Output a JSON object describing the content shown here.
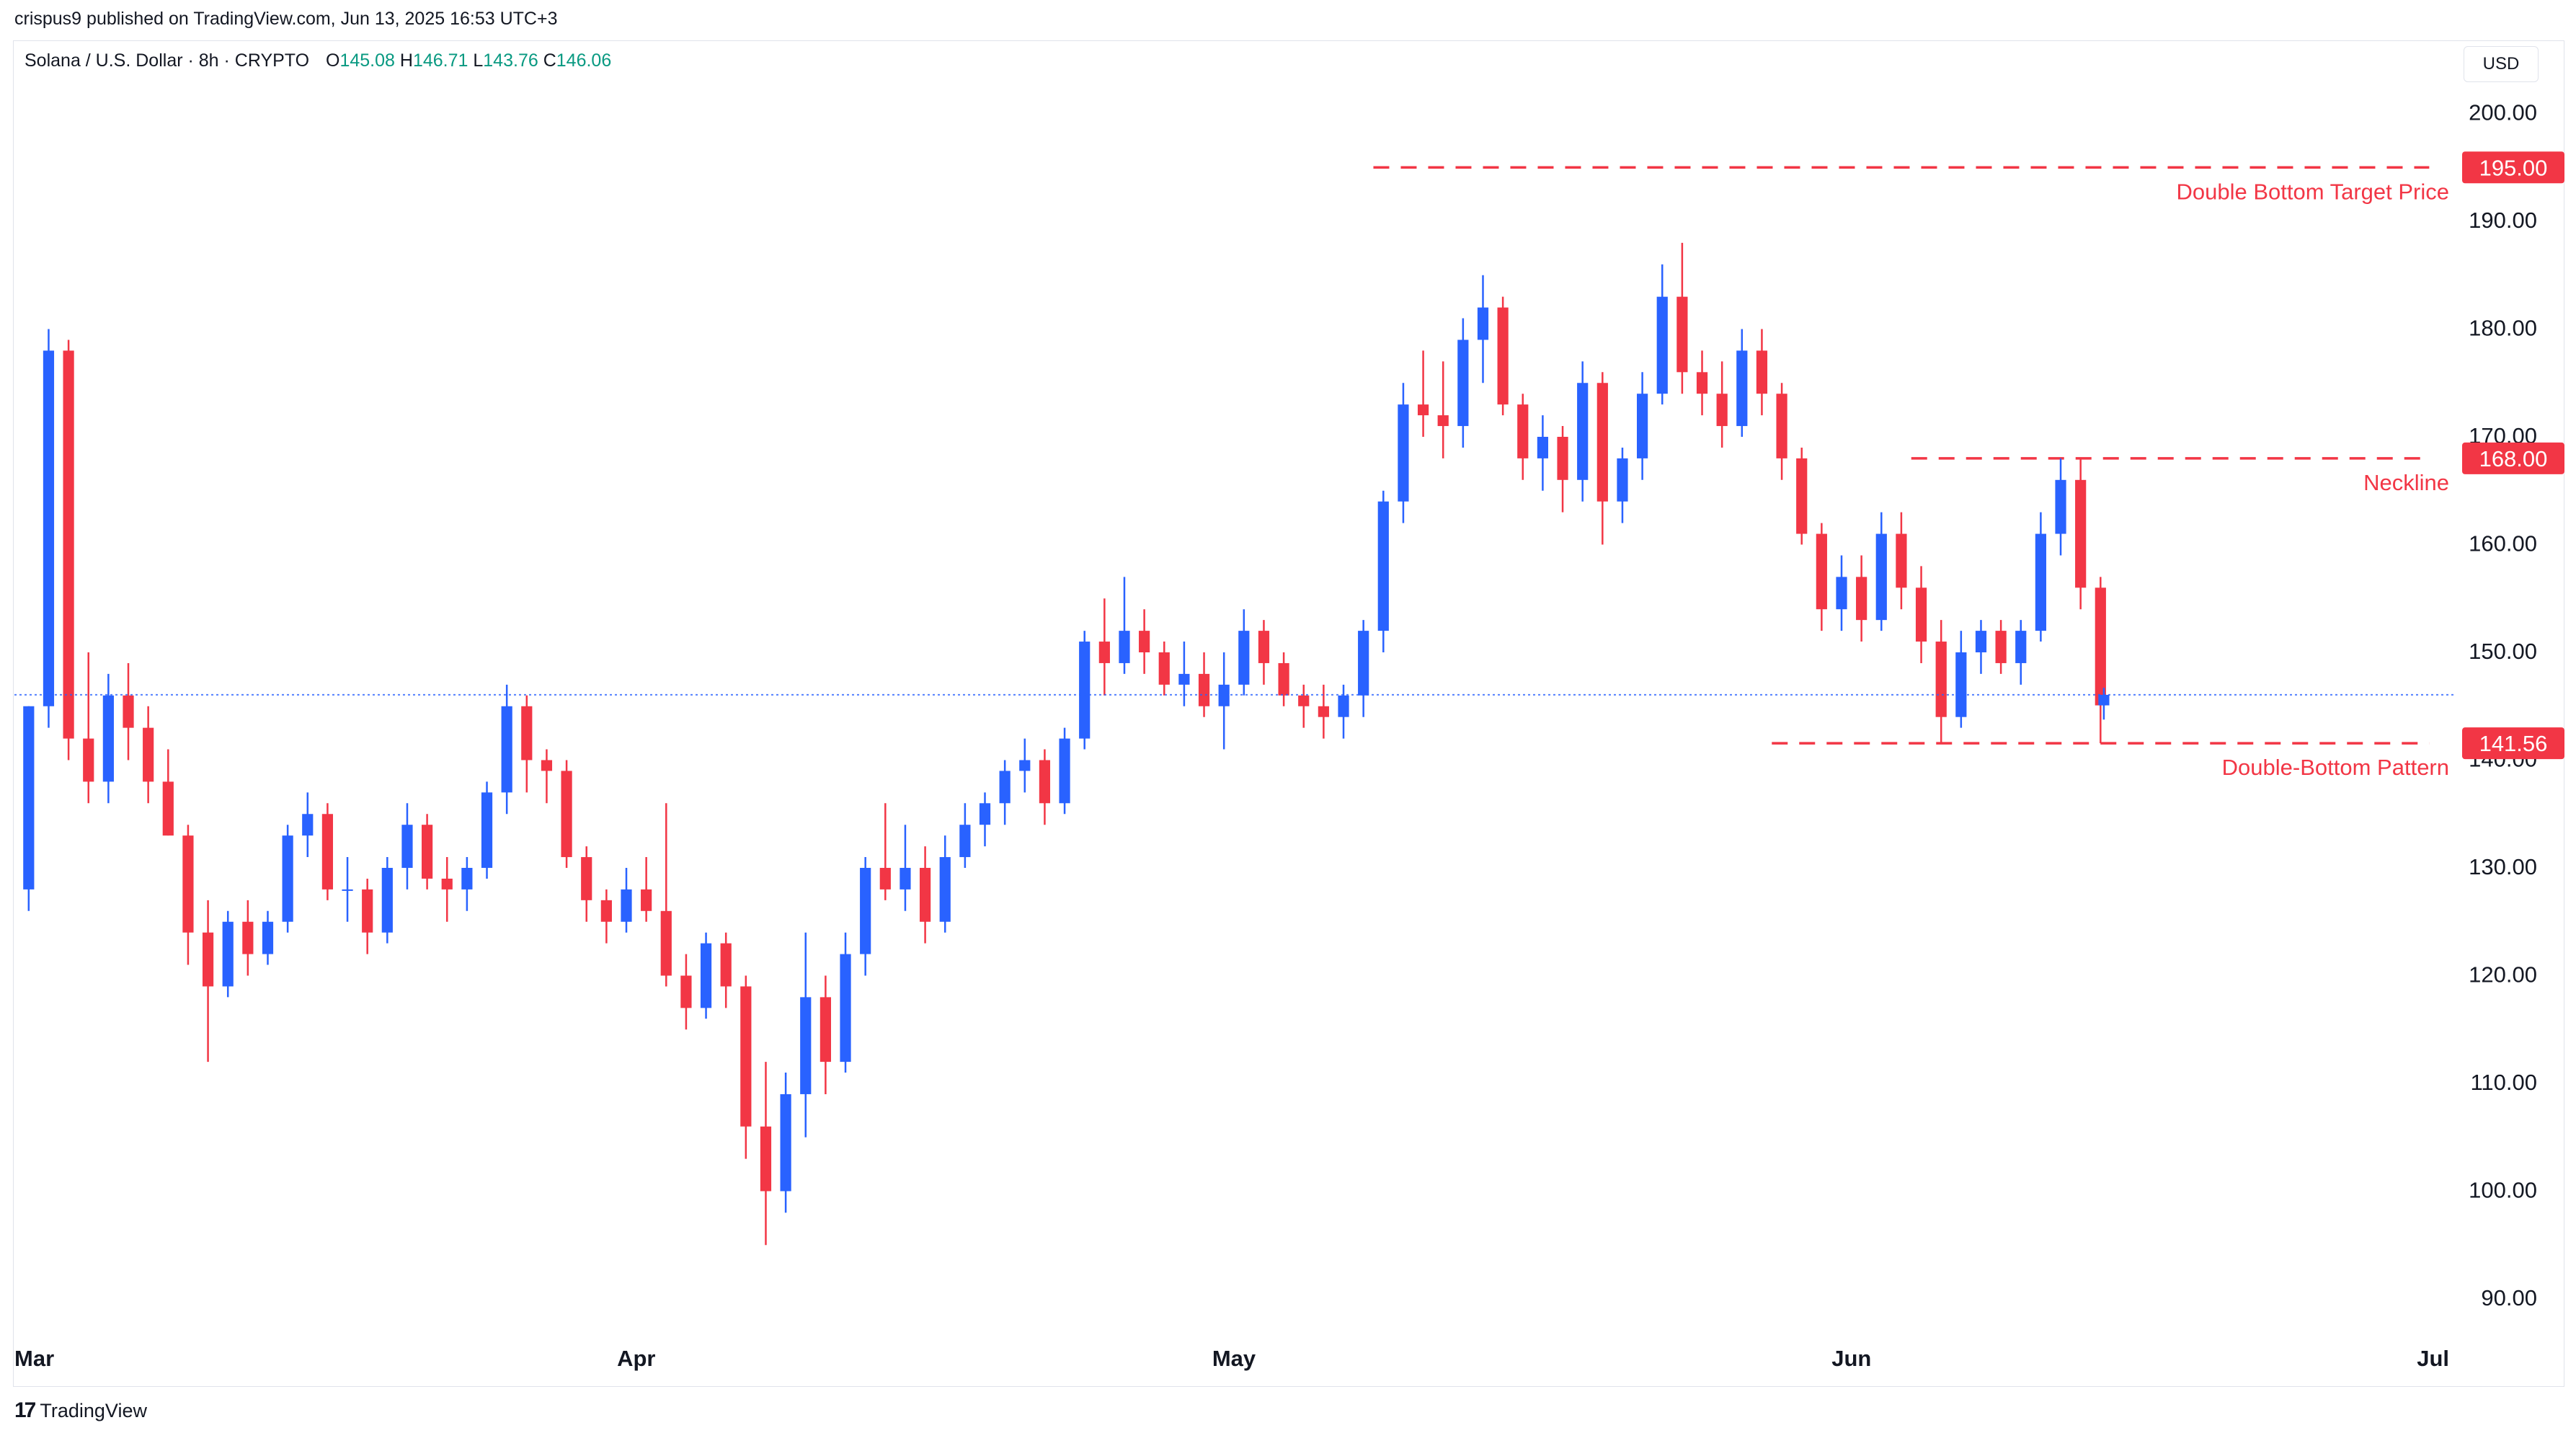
{
  "header": {
    "publisher_line": "crispus9 published on TradingView.com, Jun 13, 2025 16:53 UTC+3"
  },
  "legend": {
    "symbol": "Solana / U.S. Dollar · 8h · CRYPTO",
    "open_label": "O",
    "open": "145.08",
    "high_label": "H",
    "high": "146.71",
    "low_label": "L",
    "low": "143.76",
    "close_label": "C",
    "close": "146.06"
  },
  "currency": "USD",
  "footer": {
    "brand": "TradingView",
    "logo_glyph": "17"
  },
  "colors": {
    "up": "#2962ff",
    "down": "#f23645",
    "annotation": "#f23645",
    "last_price_line": "#2962ff"
  },
  "chart_data": {
    "type": "candlestick",
    "interval": "8h",
    "x_axis": {
      "ticks": [
        "Mar",
        "Apr",
        "May",
        "Jun",
        "Jul"
      ]
    },
    "y_axis": {
      "ticks": [
        "90.00",
        "100.00",
        "110.00",
        "120.00",
        "130.00",
        "140.00",
        "150.00",
        "160.00",
        "170.00",
        "180.00",
        "190.00",
        "200.00"
      ],
      "range": [
        85,
        203
      ]
    },
    "last_price": 146.06,
    "annotations": [
      {
        "label": "Double Bottom Target Price",
        "price": 195.0,
        "price_label": "195.00",
        "x_start": "2025-05-08",
        "x_end": "2025-06-30"
      },
      {
        "label": "Neckline",
        "price": 168.0,
        "price_label": "168.00",
        "x_start": "2025-06-04",
        "x_end": "2025-06-30"
      },
      {
        "label": "Double-Bottom Pattern",
        "price": 141.56,
        "price_label": "141.56",
        "x_start": "2025-05-28",
        "x_end": "2025-06-30"
      }
    ],
    "candles": [
      [
        "2025-03-01",
        128,
        145,
        126,
        145
      ],
      [
        "2025-03-02",
        145,
        180,
        143,
        178
      ],
      [
        "2025-03-03",
        178,
        179,
        140,
        142
      ],
      [
        "2025-03-04",
        142,
        150,
        136,
        138
      ],
      [
        "2025-03-05",
        138,
        148,
        136,
        146
      ],
      [
        "2025-03-06",
        146,
        149,
        140,
        143
      ],
      [
        "2025-03-07",
        143,
        145,
        136,
        138
      ],
      [
        "2025-03-08",
        138,
        141,
        133,
        133
      ],
      [
        "2025-03-09",
        133,
        134,
        121,
        124
      ],
      [
        "2025-03-10",
        124,
        127,
        112,
        119
      ],
      [
        "2025-03-11",
        119,
        126,
        118,
        125
      ],
      [
        "2025-03-12",
        125,
        127,
        120,
        122
      ],
      [
        "2025-03-13",
        122,
        126,
        121,
        125
      ],
      [
        "2025-03-14",
        125,
        134,
        124,
        133
      ],
      [
        "2025-03-15",
        133,
        137,
        131,
        135
      ],
      [
        "2025-03-16",
        135,
        136,
        127,
        128
      ],
      [
        "2025-03-17",
        128,
        131,
        125,
        128
      ],
      [
        "2025-03-18",
        128,
        129,
        122,
        124
      ],
      [
        "2025-03-19",
        124,
        131,
        123,
        130
      ],
      [
        "2025-03-20",
        130,
        136,
        128,
        134
      ],
      [
        "2025-03-21",
        134,
        135,
        128,
        129
      ],
      [
        "2025-03-22",
        129,
        131,
        125,
        128
      ],
      [
        "2025-03-23",
        128,
        131,
        126,
        130
      ],
      [
        "2025-03-24",
        130,
        138,
        129,
        137
      ],
      [
        "2025-03-25",
        137,
        147,
        135,
        145
      ],
      [
        "2025-03-26",
        145,
        146,
        137,
        140
      ],
      [
        "2025-03-27",
        140,
        141,
        136,
        139
      ],
      [
        "2025-03-28",
        139,
        140,
        130,
        131
      ],
      [
        "2025-03-29",
        131,
        132,
        125,
        127
      ],
      [
        "2025-03-30",
        127,
        128,
        123,
        125
      ],
      [
        "2025-03-31",
        125,
        130,
        124,
        128
      ],
      [
        "2025-04-01",
        128,
        131,
        125,
        126
      ],
      [
        "2025-04-02",
        126,
        136,
        119,
        120
      ],
      [
        "2025-04-03",
        120,
        122,
        115,
        117
      ],
      [
        "2025-04-04",
        117,
        124,
        116,
        123
      ],
      [
        "2025-04-05",
        123,
        124,
        117,
        119
      ],
      [
        "2025-04-06",
        119,
        120,
        103,
        106
      ],
      [
        "2025-04-07",
        106,
        112,
        95,
        100
      ],
      [
        "2025-04-08",
        100,
        111,
        98,
        109
      ],
      [
        "2025-04-09",
        109,
        124,
        105,
        118
      ],
      [
        "2025-04-10",
        118,
        120,
        109,
        112
      ],
      [
        "2025-04-11",
        112,
        124,
        111,
        122
      ],
      [
        "2025-04-12",
        122,
        131,
        120,
        130
      ],
      [
        "2025-04-13",
        130,
        136,
        127,
        128
      ],
      [
        "2025-04-14",
        128,
        134,
        126,
        130
      ],
      [
        "2025-04-15",
        130,
        132,
        123,
        125
      ],
      [
        "2025-04-16",
        125,
        133,
        124,
        131
      ],
      [
        "2025-04-17",
        131,
        136,
        130,
        134
      ],
      [
        "2025-04-18",
        134,
        137,
        132,
        136
      ],
      [
        "2025-04-19",
        136,
        140,
        134,
        139
      ],
      [
        "2025-04-20",
        139,
        142,
        137,
        140
      ],
      [
        "2025-04-21",
        140,
        141,
        134,
        136
      ],
      [
        "2025-04-22",
        136,
        143,
        135,
        142
      ],
      [
        "2025-04-23",
        142,
        152,
        141,
        151
      ],
      [
        "2025-04-24",
        151,
        155,
        146,
        149
      ],
      [
        "2025-04-25",
        149,
        157,
        148,
        152
      ],
      [
        "2025-04-26",
        152,
        154,
        148,
        150
      ],
      [
        "2025-04-27",
        150,
        151,
        146,
        147
      ],
      [
        "2025-04-28",
        147,
        151,
        145,
        148
      ],
      [
        "2025-04-29",
        148,
        150,
        144,
        145
      ],
      [
        "2025-04-30",
        145,
        150,
        141,
        147
      ],
      [
        "2025-05-01",
        147,
        154,
        146,
        152
      ],
      [
        "2025-05-02",
        152,
        153,
        147,
        149
      ],
      [
        "2025-05-03",
        149,
        150,
        145,
        146
      ],
      [
        "2025-05-04",
        146,
        147,
        143,
        145
      ],
      [
        "2025-05-05",
        145,
        147,
        142,
        144
      ],
      [
        "2025-05-06",
        144,
        147,
        142,
        146
      ],
      [
        "2025-05-07",
        146,
        153,
        144,
        152
      ],
      [
        "2025-05-08",
        152,
        165,
        150,
        164
      ],
      [
        "2025-05-09",
        164,
        175,
        162,
        173
      ],
      [
        "2025-05-10",
        173,
        178,
        170,
        172
      ],
      [
        "2025-05-11",
        172,
        177,
        168,
        171
      ],
      [
        "2025-05-12",
        171,
        181,
        169,
        179
      ],
      [
        "2025-05-13",
        179,
        185,
        175,
        182
      ],
      [
        "2025-05-14",
        182,
        183,
        172,
        173
      ],
      [
        "2025-05-15",
        173,
        174,
        166,
        168
      ],
      [
        "2025-05-16",
        168,
        172,
        165,
        170
      ],
      [
        "2025-05-17",
        170,
        171,
        163,
        166
      ],
      [
        "2025-05-18",
        166,
        177,
        164,
        175
      ],
      [
        "2025-05-19",
        175,
        176,
        160,
        164
      ],
      [
        "2025-05-20",
        164,
        169,
        162,
        168
      ],
      [
        "2025-05-21",
        168,
        176,
        166,
        174
      ],
      [
        "2025-05-22",
        174,
        186,
        173,
        183
      ],
      [
        "2025-05-23",
        183,
        188,
        174,
        176
      ],
      [
        "2025-05-24",
        176,
        178,
        172,
        174
      ],
      [
        "2025-05-25",
        174,
        177,
        169,
        171
      ],
      [
        "2025-05-26",
        171,
        180,
        170,
        178
      ],
      [
        "2025-05-27",
        178,
        180,
        172,
        174
      ],
      [
        "2025-05-28",
        174,
        175,
        166,
        168
      ],
      [
        "2025-05-29",
        168,
        169,
        160,
        161
      ],
      [
        "2025-05-30",
        161,
        162,
        152,
        154
      ],
      [
        "2025-05-31",
        154,
        159,
        152,
        157
      ],
      [
        "2025-06-01",
        157,
        159,
        151,
        153
      ],
      [
        "2025-06-02",
        153,
        163,
        152,
        161
      ],
      [
        "2025-06-03",
        161,
        163,
        154,
        156
      ],
      [
        "2025-06-04",
        156,
        158,
        149,
        151
      ],
      [
        "2025-06-05",
        151,
        153,
        141.6,
        144
      ],
      [
        "2025-06-06",
        144,
        152,
        143,
        150
      ],
      [
        "2025-06-07",
        150,
        153,
        148,
        152
      ],
      [
        "2025-06-08",
        152,
        153,
        148,
        149
      ],
      [
        "2025-06-09",
        149,
        153,
        147,
        152
      ],
      [
        "2025-06-10",
        152,
        163,
        151,
        161
      ],
      [
        "2025-06-11",
        161,
        168,
        159,
        166
      ],
      [
        "2025-06-12",
        166,
        168,
        154,
        156
      ],
      [
        "2025-06-13",
        156,
        157,
        141.56,
        145.08
      ],
      [
        "2025-06-13T16",
        145.08,
        146.71,
        143.76,
        146.06
      ]
    ]
  }
}
